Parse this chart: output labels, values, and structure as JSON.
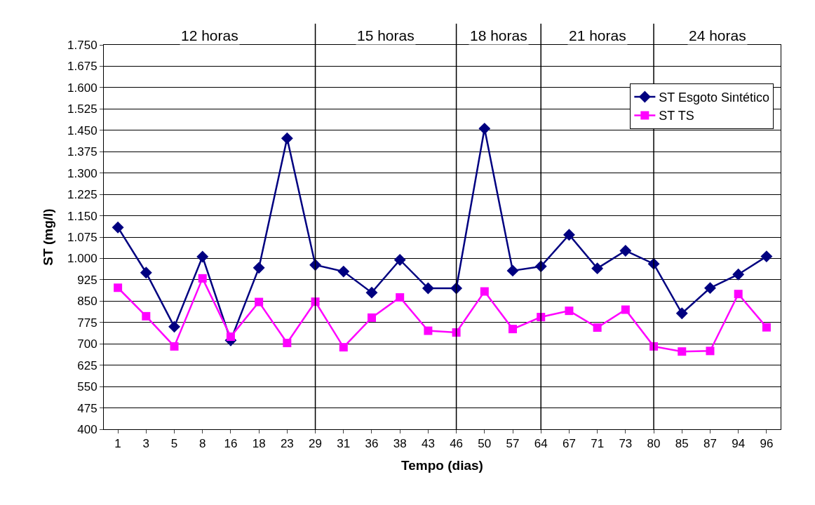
{
  "chart_data": {
    "type": "line",
    "xlabel": "Tempo (dias)",
    "ylabel": "ST (mg/l)",
    "categories": [
      "1",
      "3",
      "5",
      "8",
      "16",
      "18",
      "23",
      "29",
      "31",
      "36",
      "38",
      "43",
      "46",
      "50",
      "57",
      "64",
      "67",
      "71",
      "73",
      "80",
      "85",
      "87",
      "94",
      "96"
    ],
    "series": [
      {
        "name": "ST Esgoto Sintético",
        "color": "#000080",
        "marker": "diamond",
        "values": [
          1109,
          950,
          760,
          1006,
          712,
          967,
          1422,
          977,
          954,
          880,
          995,
          895,
          895,
          1456,
          957,
          972,
          1083,
          965,
          1027,
          981,
          807,
          896,
          944,
          1007
        ]
      },
      {
        "name": "ST TS",
        "color": "#ff00ff",
        "marker": "square",
        "values": [
          897,
          797,
          691,
          930,
          725,
          847,
          703,
          848,
          688,
          792,
          863,
          746,
          740,
          884,
          752,
          794,
          816,
          757,
          820,
          691,
          673,
          675,
          875,
          758
        ]
      }
    ],
    "ylim": [
      400,
      1750
    ],
    "yticks": [
      400,
      475,
      550,
      625,
      700,
      775,
      850,
      925,
      {
        "value": 1000,
        "label": "1.000"
      },
      {
        "value": 1075,
        "label": "1.075"
      },
      {
        "value": 1150,
        "label": "1.150"
      },
      {
        "value": 1225,
        "label": "1.225"
      },
      {
        "value": 1300,
        "label": "1.300"
      },
      {
        "value": 1375,
        "label": "1.375"
      },
      {
        "value": 1450,
        "label": "1.450"
      },
      {
        "value": 1525,
        "label": "1.525"
      },
      {
        "value": 1600,
        "label": "1.600"
      },
      {
        "value": 1675,
        "label": "1.675"
      },
      {
        "value": 1750,
        "label": "1.750"
      }
    ],
    "annotations": [
      "12 horas",
      "15 horas",
      "18 horas",
      "21 horas",
      "24 horas"
    ],
    "ref_lines": [
      {
        "axis": "x",
        "value": "29",
        "color": "#000000"
      },
      {
        "axis": "x",
        "value": "46",
        "color": "#000000"
      },
      {
        "axis": "x",
        "value": "64",
        "color": "#000000"
      },
      {
        "axis": "x",
        "value": "80",
        "color": "#000000"
      }
    ],
    "grid": "y",
    "legend": "top right",
    "line_style": "solid"
  }
}
